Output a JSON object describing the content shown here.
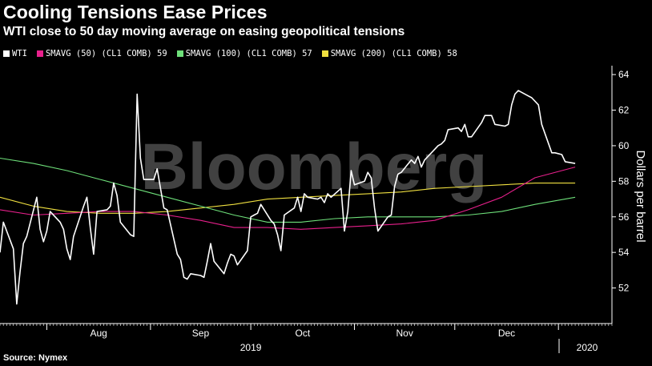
{
  "header": {
    "title": "Cooling Tensions Ease Prices",
    "subtitle": "WTI close to 50 day moving average on easing geopolitical tensions"
  },
  "legend": [
    {
      "label": "WTI",
      "color": "#ffffff"
    },
    {
      "label": "SMAVG (50) (CL1 COMB) 59",
      "color": "#e8208c"
    },
    {
      "label": "SMAVG (100) (CL1 COMB) 57",
      "color": "#6ee07a"
    },
    {
      "label": "SMAVG (200) (CL1 COMB) 58",
      "color": "#f0e040"
    }
  ],
  "watermark": "Bloomberg",
  "source": "Source: Nymex",
  "chart_data": {
    "type": "line",
    "ylabel": "Dollars per barrel",
    "ylim": [
      50,
      64.5
    ],
    "yticks": [
      52,
      54,
      56,
      58,
      60,
      62,
      64
    ],
    "xlim": [
      "2019-07-18",
      "2020-01-17"
    ],
    "month_ticks": [
      {
        "label": "Aug",
        "date": "2019-08-01"
      },
      {
        "label": "Sep",
        "date": "2019-09-01"
      },
      {
        "label": "Oct",
        "date": "2019-10-01"
      },
      {
        "label": "Nov",
        "date": "2019-11-01"
      },
      {
        "label": "Dec",
        "date": "2019-12-01"
      },
      {
        "label": "2020",
        "date": "2020-01-01"
      }
    ],
    "year_labels": [
      {
        "label": "2019",
        "date": "2019-10-01"
      }
    ],
    "grid": false,
    "legend_position": "top",
    "series": [
      {
        "name": "WTI",
        "color": "#ffffff",
        "points": [
          [
            "2019-07-18",
            54.0
          ],
          [
            "2019-07-19",
            55.7
          ],
          [
            "2019-07-22",
            54.2
          ],
          [
            "2019-07-23",
            51.1
          ],
          [
            "2019-07-24",
            52.9
          ],
          [
            "2019-07-25",
            54.5
          ],
          [
            "2019-07-26",
            54.9
          ],
          [
            "2019-07-29",
            57.1
          ],
          [
            "2019-07-30",
            55.3
          ],
          [
            "2019-07-31",
            54.6
          ],
          [
            "2019-08-01",
            55.2
          ],
          [
            "2019-08-02",
            56.3
          ],
          [
            "2019-08-05",
            55.7
          ],
          [
            "2019-08-06",
            55.3
          ],
          [
            "2019-08-07",
            54.2
          ],
          [
            "2019-08-08",
            53.6
          ],
          [
            "2019-08-09",
            54.9
          ],
          [
            "2019-08-12",
            56.6
          ],
          [
            "2019-08-13",
            57.1
          ],
          [
            "2019-08-14",
            55.4
          ],
          [
            "2019-08-15",
            53.9
          ],
          [
            "2019-08-16",
            56.3
          ],
          [
            "2019-08-19",
            56.4
          ],
          [
            "2019-08-20",
            56.6
          ],
          [
            "2019-08-21",
            57.9
          ],
          [
            "2019-08-22",
            57.2
          ],
          [
            "2019-08-23",
            55.7
          ],
          [
            "2019-08-26",
            55.0
          ],
          [
            "2019-08-27",
            54.9
          ],
          [
            "2019-08-28",
            62.9
          ],
          [
            "2019-08-29",
            59.3
          ],
          [
            "2019-08-30",
            58.1
          ],
          [
            "2019-09-02",
            58.1
          ],
          [
            "2019-09-03",
            58.7
          ],
          [
            "2019-09-04",
            57.6
          ],
          [
            "2019-09-05",
            56.5
          ],
          [
            "2019-09-06",
            56.4
          ],
          [
            "2019-09-09",
            53.9
          ],
          [
            "2019-09-10",
            53.6
          ],
          [
            "2019-09-11",
            52.6
          ],
          [
            "2019-09-12",
            52.5
          ],
          [
            "2019-09-13",
            52.8
          ],
          [
            "2019-09-16",
            52.7
          ],
          [
            "2019-09-17",
            52.6
          ],
          [
            "2019-09-18",
            53.5
          ],
          [
            "2019-09-19",
            54.5
          ],
          [
            "2019-09-20",
            53.5
          ],
          [
            "2019-09-23",
            52.8
          ],
          [
            "2019-09-24",
            53.4
          ],
          [
            "2019-09-25",
            53.9
          ],
          [
            "2019-09-26",
            53.8
          ],
          [
            "2019-09-27",
            53.3
          ],
          [
            "2019-09-30",
            54.1
          ],
          [
            "2019-10-01",
            56.0
          ],
          [
            "2019-10-02",
            56.1
          ],
          [
            "2019-10-03",
            56.2
          ],
          [
            "2019-10-04",
            56.7
          ],
          [
            "2019-10-07",
            55.8
          ],
          [
            "2019-10-08",
            55.6
          ],
          [
            "2019-10-09",
            55.0
          ],
          [
            "2019-10-10",
            54.1
          ],
          [
            "2019-10-11",
            56.1
          ],
          [
            "2019-10-14",
            56.5
          ],
          [
            "2019-10-15",
            57.1
          ],
          [
            "2019-10-16",
            56.3
          ],
          [
            "2019-10-17",
            57.3
          ],
          [
            "2019-10-18",
            57.1
          ],
          [
            "2019-10-21",
            57.0
          ],
          [
            "2019-10-22",
            57.1
          ],
          [
            "2019-10-23",
            56.8
          ],
          [
            "2019-10-24",
            57.3
          ],
          [
            "2019-10-25",
            57.1
          ],
          [
            "2019-10-28",
            57.6
          ],
          [
            "2019-10-29",
            55.2
          ],
          [
            "2019-10-30",
            56.3
          ],
          [
            "2019-10-31",
            58.6
          ],
          [
            "2019-11-01",
            57.8
          ],
          [
            "2019-11-04",
            58.0
          ],
          [
            "2019-11-05",
            58.5
          ],
          [
            "2019-11-06",
            58.2
          ],
          [
            "2019-11-07",
            56.5
          ],
          [
            "2019-11-08",
            55.2
          ],
          [
            "2019-11-11",
            56.0
          ],
          [
            "2019-11-12",
            56.1
          ],
          [
            "2019-11-13",
            57.7
          ],
          [
            "2019-11-14",
            58.4
          ],
          [
            "2019-11-15",
            58.5
          ],
          [
            "2019-11-18",
            59.2
          ],
          [
            "2019-11-19",
            59.0
          ],
          [
            "2019-11-20",
            59.4
          ],
          [
            "2019-11-21",
            58.8
          ],
          [
            "2019-11-22",
            59.2
          ],
          [
            "2019-11-25",
            59.8
          ],
          [
            "2019-11-26",
            60.0
          ],
          [
            "2019-11-27",
            60.1
          ],
          [
            "2019-11-28",
            60.3
          ],
          [
            "2019-11-29",
            60.9
          ],
          [
            "2019-12-02",
            61.0
          ],
          [
            "2019-12-03",
            60.8
          ],
          [
            "2019-12-04",
            61.2
          ],
          [
            "2019-12-05",
            60.5
          ],
          [
            "2019-12-06",
            60.5
          ],
          [
            "2019-12-09",
            61.3
          ],
          [
            "2019-12-10",
            61.7
          ],
          [
            "2019-12-11",
            61.7
          ],
          [
            "2019-12-12",
            61.7
          ],
          [
            "2019-12-13",
            61.2
          ],
          [
            "2019-12-16",
            61.1
          ],
          [
            "2019-12-17",
            61.2
          ],
          [
            "2019-12-18",
            62.3
          ],
          [
            "2019-12-19",
            62.9
          ],
          [
            "2019-12-20",
            63.1
          ],
          [
            "2019-12-23",
            62.8
          ],
          [
            "2019-12-24",
            62.7
          ],
          [
            "2019-12-26",
            62.3
          ],
          [
            "2019-12-27",
            61.2
          ],
          [
            "2019-12-30",
            59.6
          ],
          [
            "2019-12-31",
            59.6
          ],
          [
            "2020-01-02",
            59.5
          ],
          [
            "2020-01-03",
            59.1
          ],
          [
            "2020-01-06",
            59.0
          ]
        ]
      },
      {
        "name": "SMAVG (50) (CL1 COMB) 59",
        "color": "#e8208c",
        "points": [
          [
            "2019-07-18",
            56.4
          ],
          [
            "2019-07-28",
            56.1
          ],
          [
            "2019-08-07",
            56.2
          ],
          [
            "2019-08-17",
            56.3
          ],
          [
            "2019-08-27",
            56.3
          ],
          [
            "2019-09-06",
            56.1
          ],
          [
            "2019-09-16",
            55.8
          ],
          [
            "2019-09-26",
            55.4
          ],
          [
            "2019-10-06",
            55.4
          ],
          [
            "2019-10-16",
            55.3
          ],
          [
            "2019-10-26",
            55.4
          ],
          [
            "2019-11-05",
            55.5
          ],
          [
            "2019-11-15",
            55.6
          ],
          [
            "2019-11-25",
            55.8
          ],
          [
            "2019-12-05",
            56.4
          ],
          [
            "2019-12-15",
            57.1
          ],
          [
            "2019-12-25",
            58.2
          ],
          [
            "2020-01-06",
            58.8
          ]
        ]
      },
      {
        "name": "SMAVG (100) (CL1 COMB) 57",
        "color": "#6ee07a",
        "points": [
          [
            "2019-07-18",
            59.3
          ],
          [
            "2019-07-28",
            59.0
          ],
          [
            "2019-08-07",
            58.6
          ],
          [
            "2019-08-17",
            58.1
          ],
          [
            "2019-08-27",
            57.6
          ],
          [
            "2019-09-06",
            57.1
          ],
          [
            "2019-09-16",
            56.6
          ],
          [
            "2019-09-26",
            56.1
          ],
          [
            "2019-10-06",
            55.7
          ],
          [
            "2019-10-16",
            55.7
          ],
          [
            "2019-10-26",
            55.9
          ],
          [
            "2019-11-05",
            56.0
          ],
          [
            "2019-11-15",
            56.0
          ],
          [
            "2019-11-25",
            56.0
          ],
          [
            "2019-12-05",
            56.1
          ],
          [
            "2019-12-15",
            56.3
          ],
          [
            "2019-12-25",
            56.7
          ],
          [
            "2020-01-06",
            57.1
          ]
        ]
      },
      {
        "name": "SMAVG (200) (CL1 COMB) 58",
        "color": "#f0e040",
        "points": [
          [
            "2019-07-18",
            57.1
          ],
          [
            "2019-07-28",
            56.6
          ],
          [
            "2019-08-07",
            56.3
          ],
          [
            "2019-08-17",
            56.2
          ],
          [
            "2019-08-27",
            56.2
          ],
          [
            "2019-09-06",
            56.3
          ],
          [
            "2019-09-16",
            56.5
          ],
          [
            "2019-09-26",
            56.7
          ],
          [
            "2019-10-06",
            57.0
          ],
          [
            "2019-10-16",
            57.1
          ],
          [
            "2019-10-26",
            57.2
          ],
          [
            "2019-11-05",
            57.3
          ],
          [
            "2019-11-15",
            57.4
          ],
          [
            "2019-11-25",
            57.6
          ],
          [
            "2019-12-05",
            57.7
          ],
          [
            "2019-12-15",
            57.8
          ],
          [
            "2019-12-25",
            57.9
          ],
          [
            "2020-01-06",
            57.9
          ]
        ]
      }
    ]
  }
}
